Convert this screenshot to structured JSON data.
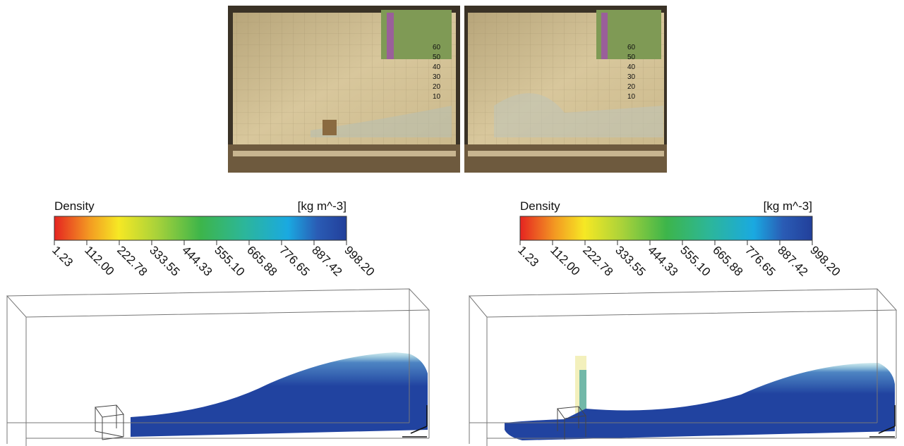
{
  "panels": [
    {
      "photo_scale": [
        60,
        50,
        40,
        30,
        20,
        10
      ],
      "colorbar": {
        "title": "Density",
        "unit": "[kg m^-3]",
        "range": [
          1.23,
          998.2
        ],
        "ticks": [
          1.23,
          {
            "value": 112,
            "label": "112.00"
          },
          222.78,
          333.55,
          444.33,
          {
            "value": 555.1,
            "label": "555.10"
          },
          665.88,
          776.65,
          887.42,
          {
            "value": 998.2,
            "label": "998.20"
          }
        ]
      }
    },
    {
      "photo_scale": [
        60,
        50,
        40,
        30,
        20,
        10
      ],
      "colorbar": {
        "title": "Density",
        "unit": "[kg m^-3]",
        "range": [
          1.23,
          998.2
        ],
        "ticks": [
          1.23,
          {
            "value": 112,
            "label": "112.00"
          },
          222.78,
          333.55,
          444.33,
          {
            "value": 555.1,
            "label": "555.10"
          },
          665.88,
          776.65,
          887.42,
          {
            "value": 998.2,
            "label": "998.20"
          }
        ]
      }
    }
  ]
}
